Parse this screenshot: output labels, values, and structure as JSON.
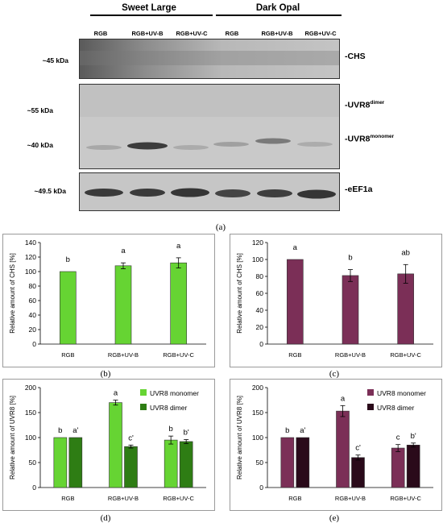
{
  "blot": {
    "groups": [
      "Sweet Large",
      "Dark Opal"
    ],
    "lanes": [
      "RGB",
      "RGB+UV-B",
      "RGB+UV-C",
      "RGB",
      "RGB+UV-B",
      "RGB+UV-C"
    ],
    "mw_labels": {
      "chs": "~45 kDa",
      "dimer": "~55 kDa",
      "monomer": "~40 kDa",
      "eef": "~49.5 kDa"
    },
    "proteins": {
      "chs": "-CHS",
      "uvr8_prefix": "-UVR8",
      "dimer_sup": "dimer",
      "monomer_sup": "monomer",
      "eef": "-eEF1a"
    },
    "panel_label": "(a)"
  },
  "colors": {
    "sweet_large": "#66d433",
    "sweet_large_dark": "#2e7d14",
    "dark_opal": "#7b2f57",
    "dark_opal_dark": "#2a0a1a"
  },
  "chart_data": [
    {
      "panel": "(b)",
      "type": "bar",
      "categories": [
        "RGB",
        "RGB+UV-B",
        "RGB+UV-C"
      ],
      "series": [
        {
          "values": [
            100,
            108,
            112
          ],
          "errors": [
            0,
            4,
            7
          ],
          "letters": [
            "b",
            "a",
            "a"
          ],
          "color": "#66d433"
        }
      ],
      "ylabel": "Relative amount of CHS [%]",
      "ylim": [
        0,
        140
      ],
      "yticks": [
        0,
        20,
        40,
        60,
        80,
        100,
        120,
        140
      ]
    },
    {
      "panel": "(c)",
      "type": "bar",
      "categories": [
        "RGB",
        "RGB+UV-B",
        "RGB+UV-C"
      ],
      "series": [
        {
          "values": [
            100,
            81,
            83
          ],
          "errors": [
            0,
            7,
            11
          ],
          "letters": [
            "a",
            "b",
            "ab"
          ],
          "color": "#7b2f57"
        }
      ],
      "ylabel": "Relative amount of CHS [%]",
      "ylim": [
        0,
        120
      ],
      "yticks": [
        0,
        20,
        40,
        60,
        80,
        100,
        120
      ]
    },
    {
      "panel": "(d)",
      "type": "bar",
      "categories": [
        "RGB",
        "RGB+UV-B",
        "RGB+UV-C"
      ],
      "series": [
        {
          "name": "UVR8 monomer",
          "values": [
            100,
            170,
            95
          ],
          "errors": [
            0,
            5,
            8
          ],
          "letters": [
            "b",
            "a",
            "b"
          ],
          "color": "#66d433"
        },
        {
          "name": "UVR8 dimer",
          "values": [
            100,
            82,
            92
          ],
          "errors": [
            0,
            3,
            4
          ],
          "letters": [
            "a'",
            "c'",
            "b'"
          ],
          "color": "#2e7d14"
        }
      ],
      "ylabel": "Relative amount of UVR8 [%]",
      "ylim": [
        0,
        200
      ],
      "yticks": [
        0,
        50,
        100,
        150,
        200
      ],
      "legend": "top-right"
    },
    {
      "panel": "(e)",
      "type": "bar",
      "categories": [
        "RGB",
        "RGB+UV-B",
        "RGB+UV-C"
      ],
      "series": [
        {
          "name": "UVR8 monomer",
          "values": [
            100,
            153,
            79
          ],
          "errors": [
            0,
            11,
            7
          ],
          "letters": [
            "b",
            "a",
            "c"
          ],
          "color": "#7b2f57"
        },
        {
          "name": "UVR8 dimer",
          "values": [
            100,
            60,
            85
          ],
          "errors": [
            0,
            5,
            4
          ],
          "letters": [
            "a'",
            "c'",
            "b'"
          ],
          "color": "#2a0a1a"
        }
      ],
      "ylabel": "Relative amount of UVR8 [%]",
      "ylim": [
        0,
        200
      ],
      "yticks": [
        0,
        50,
        100,
        150,
        200
      ],
      "legend": "top-right"
    }
  ]
}
